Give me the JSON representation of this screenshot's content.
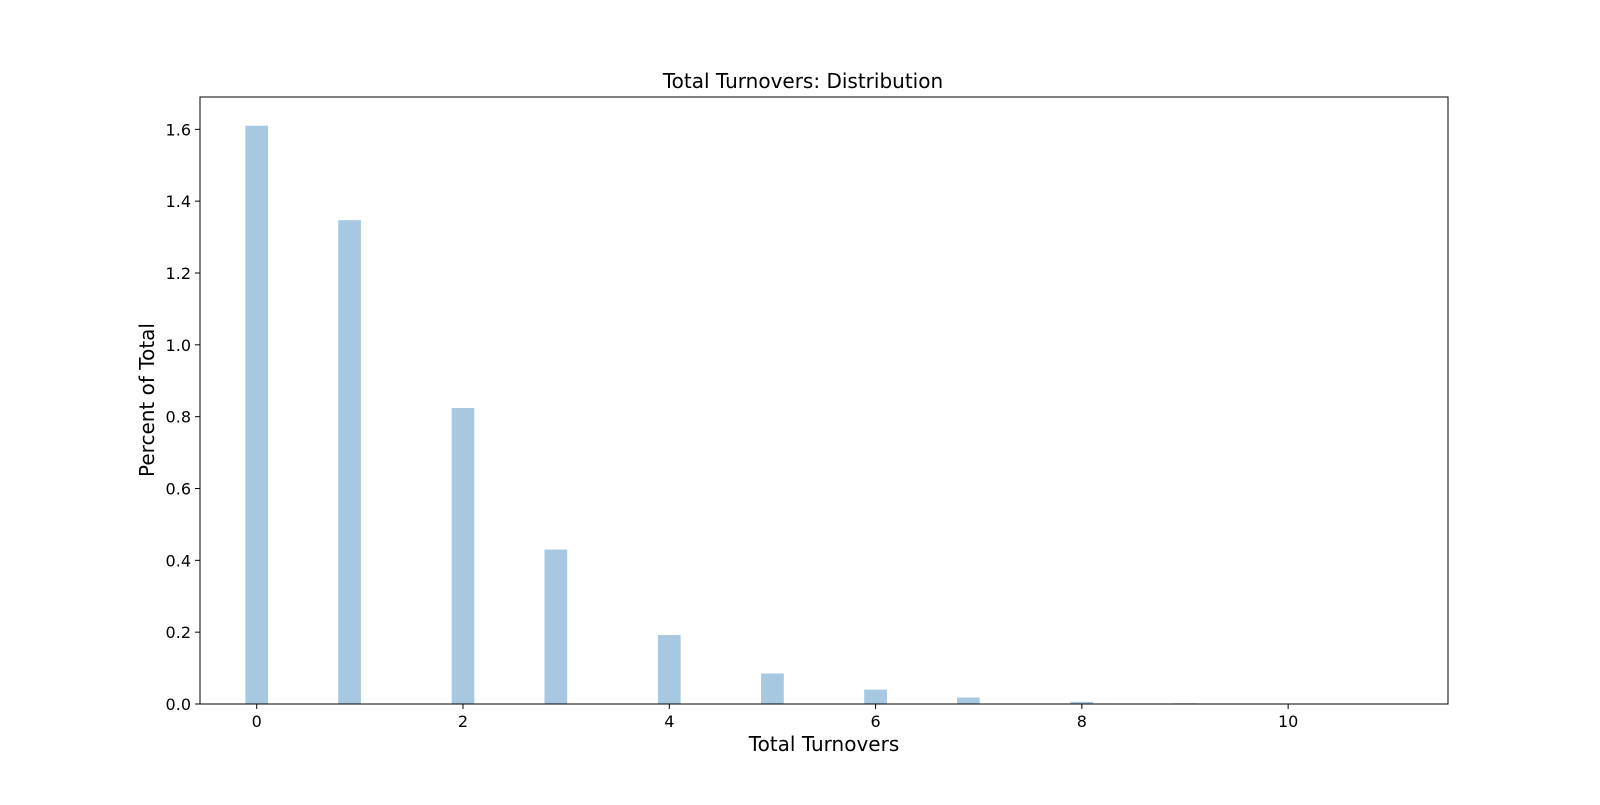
{
  "chart_data": {
    "type": "bar",
    "title": "Total Turnovers: Distribution",
    "xlabel": "Total Turnovers",
    "ylabel": "Percent of Total",
    "x": [
      0,
      0.9,
      2,
      2.9,
      4,
      5,
      6,
      6.9,
      8,
      9,
      10
    ],
    "values": [
      1.61,
      1.347,
      0.824,
      0.43,
      0.192,
      0.085,
      0.04,
      0.018,
      0.006,
      0.002,
      0.0006
    ],
    "bar_width": 0.22,
    "xlim": [
      -0.55,
      11.55
    ],
    "ylim": [
      0,
      1.69
    ],
    "x_ticks": [
      0,
      2,
      4,
      6,
      8,
      10
    ],
    "x_tick_labels": [
      "0",
      "2",
      "4",
      "6",
      "8",
      "10"
    ],
    "y_ticks": [
      0.0,
      0.2,
      0.4,
      0.6,
      0.8,
      1.0,
      1.2,
      1.4,
      1.6
    ],
    "y_tick_labels": [
      "0.0",
      "0.2",
      "0.4",
      "0.6",
      "0.8",
      "1.0",
      "1.2",
      "1.4",
      "1.6"
    ],
    "bar_color": "#a6c8e0",
    "grid": false,
    "legend": "none"
  }
}
